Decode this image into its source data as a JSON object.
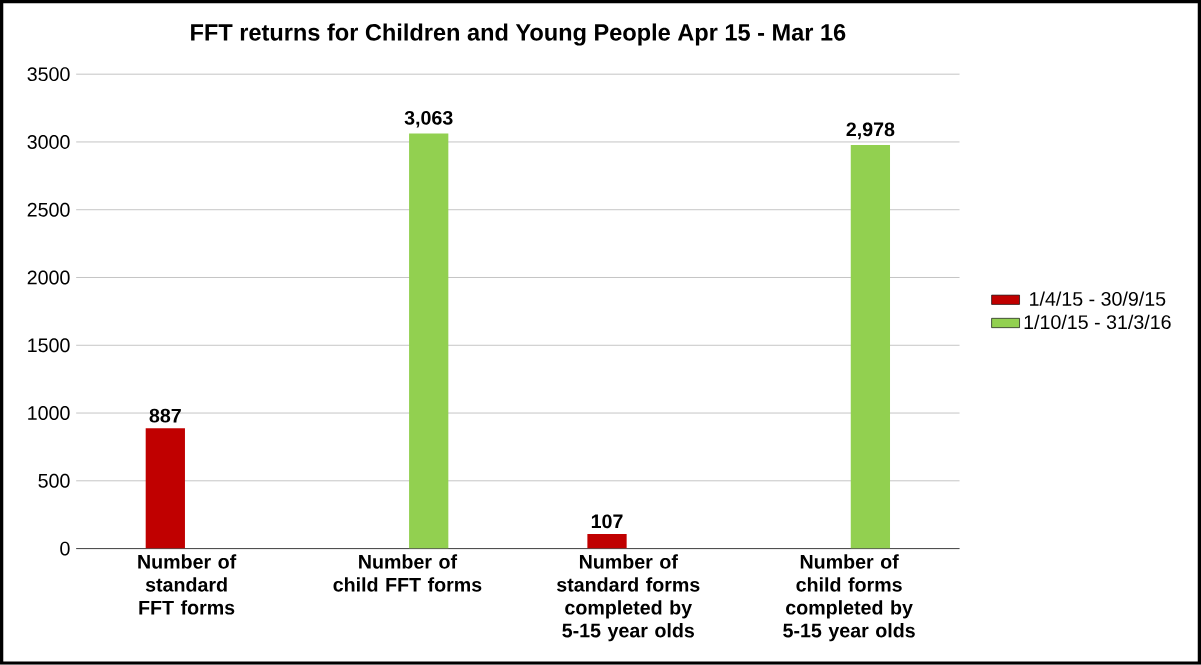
{
  "chart_data": {
    "type": "bar",
    "title": "FFT returns for Children and Young People Apr 15 - Mar 16",
    "categories": [
      "Number of standard FFT forms",
      "Number of child FFT forms",
      "Number of standard forms completed by 5-15 year olds",
      "Number of child forms completed by 5-15 year olds"
    ],
    "series": [
      {
        "name": "1/4/15 - 30/9/15",
        "color": "#c00000",
        "values": [
          887,
          0,
          107,
          0
        ],
        "value_labels": [
          "887",
          null,
          "107",
          null
        ]
      },
      {
        "name": "1/10/15 - 31/3/16",
        "color": "#92d050",
        "values": [
          0,
          3063,
          0,
          2978
        ],
        "value_labels": [
          null,
          "3,063",
          null,
          "2,978"
        ]
      }
    ],
    "ylim": [
      0,
      3500
    ],
    "yticks": [
      0,
      500,
      1000,
      1500,
      2000,
      2500,
      3000,
      3500
    ],
    "grid": "y",
    "legend": "right"
  }
}
